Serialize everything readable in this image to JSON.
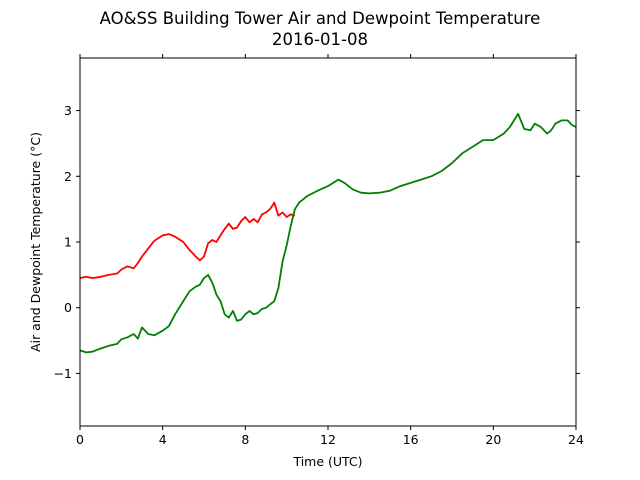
{
  "chart_data": {
    "type": "line",
    "title": "AO&SS Building Tower Air and Dewpoint Temperature",
    "subtitle": "2016-01-08",
    "xlabel": "Time (UTC)",
    "ylabel": "Air and Dewpoint Temperature (°C)",
    "xlim": [
      0,
      24
    ],
    "ylim": [
      -1.8,
      3.8
    ],
    "x_ticks": [
      0,
      4,
      8,
      12,
      16,
      20,
      24
    ],
    "y_ticks": [
      -1,
      0,
      1,
      2,
      3
    ],
    "grid": false,
    "legend": "none",
    "series": [
      {
        "color": "#ff0000",
        "x": [
          0,
          0.3,
          0.6,
          1.0,
          1.4,
          1.8,
          2.0,
          2.3,
          2.6,
          2.8,
          3.0,
          3.3,
          3.6,
          4.0,
          4.3,
          4.6,
          5.0,
          5.3,
          5.6,
          5.8,
          6.0,
          6.2,
          6.4,
          6.6,
          6.8,
          7.0,
          7.2,
          7.4,
          7.6,
          7.8,
          8.0,
          8.2,
          8.4,
          8.6,
          8.8,
          9.0,
          9.2,
          9.4,
          9.6,
          9.8,
          10.0,
          10.2,
          10.4
        ],
        "y": [
          0.45,
          0.47,
          0.45,
          0.47,
          0.5,
          0.52,
          0.58,
          0.63,
          0.6,
          0.68,
          0.78,
          0.9,
          1.02,
          1.1,
          1.12,
          1.08,
          1.0,
          0.88,
          0.78,
          0.72,
          0.78,
          0.98,
          1.03,
          1.0,
          1.1,
          1.2,
          1.28,
          1.2,
          1.22,
          1.32,
          1.38,
          1.3,
          1.35,
          1.3,
          1.42,
          1.45,
          1.5,
          1.6,
          1.4,
          1.45,
          1.38,
          1.42,
          1.4
        ]
      },
      {
        "color": "#008000",
        "x": [
          0,
          0.3,
          0.6,
          1.0,
          1.4,
          1.8,
          2.0,
          2.3,
          2.6,
          2.8,
          3.0,
          3.3,
          3.6,
          4.0,
          4.3,
          4.6,
          5.0,
          5.3,
          5.6,
          5.8,
          6.0,
          6.2,
          6.4,
          6.6,
          6.8,
          7.0,
          7.2,
          7.4,
          7.6,
          7.8,
          8.0,
          8.2,
          8.4,
          8.6,
          8.8,
          9.0,
          9.2,
          9.4,
          9.6,
          9.8,
          10.0,
          10.2,
          10.4,
          10.6,
          10.8,
          11.0,
          11.5,
          12.0,
          12.5,
          12.8,
          13.2,
          13.6,
          14.0,
          14.5,
          15.0,
          15.5,
          16.0,
          16.5,
          17.0,
          17.5,
          18.0,
          18.5,
          19.0,
          19.5,
          20.0,
          20.5,
          20.8,
          21.0,
          21.2,
          21.5,
          21.8,
          22.0,
          22.3,
          22.6,
          22.8,
          23.0,
          23.3,
          23.6,
          23.8,
          24.0
        ],
        "y": [
          -0.65,
          -0.68,
          -0.67,
          -0.62,
          -0.58,
          -0.55,
          -0.48,
          -0.45,
          -0.4,
          -0.47,
          -0.3,
          -0.4,
          -0.42,
          -0.35,
          -0.28,
          -0.1,
          0.1,
          0.25,
          0.32,
          0.35,
          0.45,
          0.5,
          0.38,
          0.2,
          0.1,
          -0.1,
          -0.15,
          -0.05,
          -0.2,
          -0.18,
          -0.1,
          -0.05,
          -0.1,
          -0.08,
          -0.02,
          0.0,
          0.05,
          0.1,
          0.3,
          0.7,
          0.95,
          1.25,
          1.5,
          1.6,
          1.65,
          1.7,
          1.78,
          1.85,
          1.95,
          1.9,
          1.8,
          1.75,
          1.74,
          1.75,
          1.78,
          1.85,
          1.9,
          1.95,
          2.0,
          2.08,
          2.2,
          2.35,
          2.45,
          2.55,
          2.55,
          2.65,
          2.75,
          2.85,
          2.95,
          2.72,
          2.7,
          2.8,
          2.75,
          2.65,
          2.7,
          2.8,
          2.85,
          2.85,
          2.78,
          2.75
        ]
      }
    ]
  }
}
